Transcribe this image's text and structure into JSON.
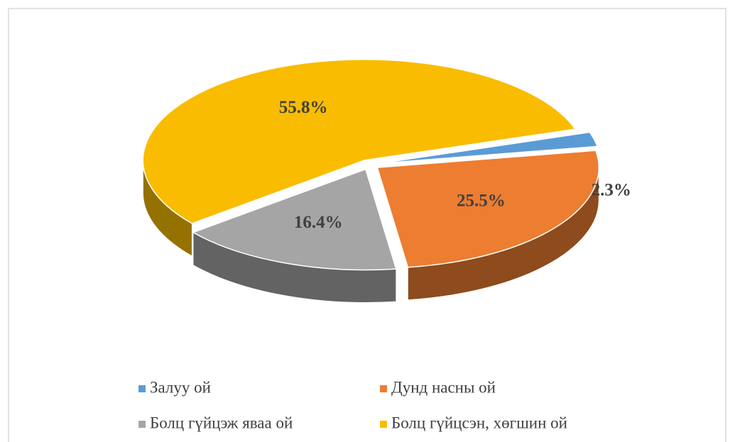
{
  "chart_data": {
    "type": "pie3d",
    "categories": [
      "Залуу ой",
      "Дунд насны ой",
      "Болц гүйцэж яваа ой",
      "Болц гүйцсэн, хөгшин ой"
    ],
    "values": [
      2.3,
      25.5,
      16.4,
      55.8
    ],
    "value_labels": [
      "2.3%",
      "25.5%",
      "16.4%",
      "55.8%"
    ],
    "colors": [
      "#5b9bd5",
      "#ed7d31",
      "#a5a5a5",
      "#f9bc00"
    ],
    "legend": "bottom"
  }
}
